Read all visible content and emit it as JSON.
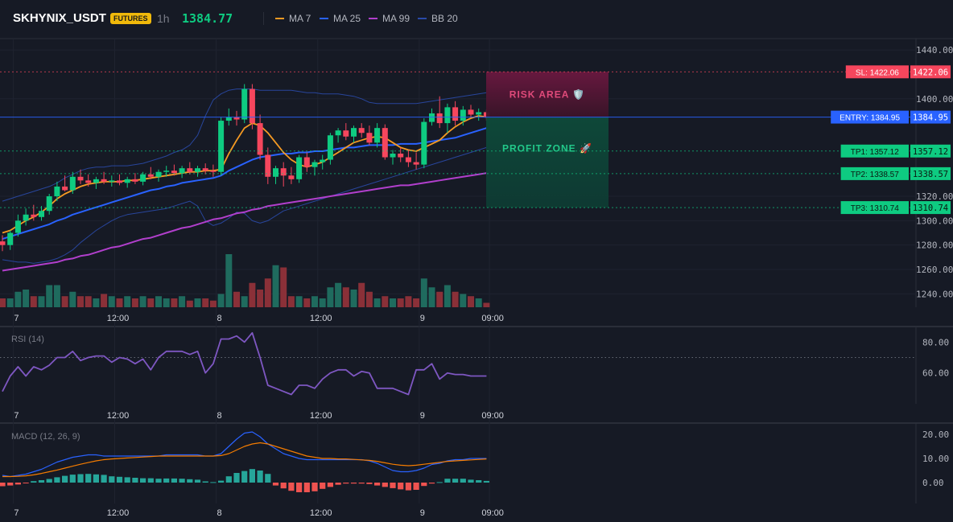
{
  "header": {
    "symbol": "SKHYNIX_USDT",
    "badge": "FUTURES",
    "timeframe": "1h",
    "last_price": "1384.77",
    "legend": [
      {
        "label": "MA 7",
        "color": "#f59a23"
      },
      {
        "label": "MA 25",
        "color": "#2962ff"
      },
      {
        "label": "MA 99",
        "color": "#b13fcc"
      },
      {
        "label": "BB 20",
        "color": "#2a4aa8"
      }
    ]
  },
  "colors": {
    "up": "#0ecb81",
    "down": "#f6465d",
    "vol_up": "#1f6b5e",
    "vol_down": "#8a3038",
    "rsi": "#7e57c2",
    "macd": "#2962ff",
    "signal": "#f57c00",
    "hist_up": "#26a69a",
    "hist_down": "#ef5350",
    "sl": "#f6465d",
    "entry": "#2962ff",
    "tp": "#0ecb81"
  },
  "chart_data": [
    {
      "type": "candlestick",
      "panel": "price",
      "y_ticks": [
        1240,
        1260,
        1280,
        1300,
        1320,
        1400,
        1440
      ],
      "ylim": [
        1229,
        1448
      ],
      "x_labels": [
        "7",
        "12:00",
        "8",
        "12:00",
        "9",
        "09:00"
      ],
      "ohlc": [
        [
          1283,
          1288,
          1275,
          1280
        ],
        [
          1280,
          1292,
          1276,
          1290
        ],
        [
          1290,
          1305,
          1287,
          1300
        ],
        [
          1300,
          1310,
          1296,
          1305
        ],
        [
          1305,
          1313,
          1300,
          1303
        ],
        [
          1303,
          1312,
          1300,
          1308
        ],
        [
          1308,
          1322,
          1305,
          1320
        ],
        [
          1320,
          1332,
          1316,
          1328
        ],
        [
          1328,
          1337,
          1324,
          1325
        ],
        [
          1325,
          1340,
          1322,
          1336
        ],
        [
          1336,
          1342,
          1330,
          1333
        ],
        [
          1333,
          1338,
          1328,
          1331
        ],
        [
          1331,
          1336,
          1326,
          1334
        ],
        [
          1334,
          1340,
          1330,
          1332
        ],
        [
          1332,
          1337,
          1328,
          1333
        ],
        [
          1333,
          1338,
          1329,
          1331
        ],
        [
          1331,
          1336,
          1327,
          1334
        ],
        [
          1334,
          1339,
          1330,
          1332
        ],
        [
          1332,
          1340,
          1329,
          1338
        ],
        [
          1338,
          1344,
          1334,
          1336
        ],
        [
          1336,
          1342,
          1332,
          1340
        ],
        [
          1340,
          1345,
          1336,
          1341
        ],
        [
          1341,
          1346,
          1337,
          1339
        ],
        [
          1339,
          1345,
          1335,
          1343
        ],
        [
          1343,
          1348,
          1338,
          1340
        ],
        [
          1340,
          1345,
          1336,
          1343
        ],
        [
          1343,
          1347,
          1338,
          1341
        ],
        [
          1341,
          1346,
          1336,
          1340
        ],
        [
          1340,
          1385,
          1337,
          1382
        ],
        [
          1382,
          1392,
          1378,
          1385
        ],
        [
          1385,
          1390,
          1378,
          1383
        ],
        [
          1383,
          1412,
          1380,
          1408
        ],
        [
          1408,
          1412,
          1375,
          1380
        ],
        [
          1380,
          1387,
          1350,
          1354
        ],
        [
          1354,
          1360,
          1330,
          1336
        ],
        [
          1336,
          1345,
          1330,
          1343
        ],
        [
          1343,
          1348,
          1328,
          1337
        ],
        [
          1337,
          1344,
          1330,
          1334
        ],
        [
          1334,
          1354,
          1331,
          1352
        ],
        [
          1352,
          1356,
          1340,
          1344
        ],
        [
          1344,
          1350,
          1337,
          1348
        ],
        [
          1348,
          1354,
          1342,
          1350
        ],
        [
          1350,
          1372,
          1346,
          1370
        ],
        [
          1370,
          1376,
          1364,
          1374
        ],
        [
          1374,
          1380,
          1366,
          1369
        ],
        [
          1369,
          1378,
          1364,
          1376
        ],
        [
          1376,
          1380,
          1368,
          1372
        ],
        [
          1372,
          1378,
          1362,
          1364
        ],
        [
          1364,
          1380,
          1360,
          1376
        ],
        [
          1376,
          1379,
          1350,
          1352
        ],
        [
          1352,
          1358,
          1346,
          1355
        ],
        [
          1355,
          1360,
          1348,
          1352
        ],
        [
          1352,
          1358,
          1344,
          1348
        ],
        [
          1348,
          1356,
          1342,
          1346
        ],
        [
          1346,
          1384,
          1343,
          1381
        ],
        [
          1381,
          1392,
          1378,
          1388
        ],
        [
          1388,
          1402,
          1376,
          1380
        ],
        [
          1380,
          1396,
          1372,
          1393
        ],
        [
          1393,
          1398,
          1378,
          1382
        ],
        [
          1382,
          1394,
          1378,
          1391
        ],
        [
          1391,
          1395,
          1385,
          1387
        ],
        [
          1387,
          1392,
          1382,
          1389
        ],
        [
          1389,
          1391,
          1382,
          1385
        ]
      ],
      "volume": [
        8,
        8,
        14,
        16,
        10,
        10,
        20,
        20,
        10,
        14,
        10,
        10,
        8,
        12,
        10,
        8,
        10,
        8,
        10,
        8,
        10,
        8,
        8,
        10,
        6,
        8,
        8,
        6,
        12,
        48,
        14,
        10,
        22,
        16,
        26,
        38,
        36,
        10,
        10,
        8,
        10,
        8,
        18,
        22,
        18,
        16,
        22,
        14,
        8,
        10,
        8,
        8,
        10,
        8,
        26,
        18,
        14,
        20,
        14,
        12,
        10,
        8,
        4
      ],
      "ma7": [
        1290,
        1292,
        1296,
        1300,
        1303,
        1307,
        1312,
        1318,
        1322,
        1325,
        1328,
        1330,
        1331,
        1332,
        1332,
        1332,
        1333,
        1333,
        1334,
        1335,
        1336,
        1337,
        1338,
        1339,
        1340,
        1340,
        1341,
        1341,
        1342,
        1355,
        1366,
        1376,
        1380,
        1378,
        1372,
        1364,
        1356,
        1350,
        1346,
        1344,
        1346,
        1348,
        1352,
        1356,
        1360,
        1364,
        1366,
        1368,
        1369,
        1368,
        1364,
        1360,
        1358,
        1357,
        1360,
        1363,
        1366,
        1372,
        1377,
        1381,
        1384,
        1386,
        1385
      ],
      "ma25": [
        1285,
        1287,
        1289,
        1291,
        1293,
        1295,
        1297,
        1300,
        1302,
        1305,
        1307,
        1309,
        1311,
        1313,
        1315,
        1317,
        1319,
        1321,
        1323,
        1325,
        1326,
        1328,
        1329,
        1331,
        1332,
        1333,
        1334,
        1335,
        1337,
        1341,
        1344,
        1347,
        1350,
        1352,
        1353,
        1354,
        1355,
        1355,
        1356,
        1356,
        1357,
        1357,
        1358,
        1359,
        1360,
        1360,
        1361,
        1362,
        1362,
        1362,
        1362,
        1363,
        1363,
        1363,
        1364,
        1365,
        1366,
        1367,
        1368,
        1370,
        1372,
        1374,
        1376
      ],
      "ma99": [
        1259,
        1260,
        1261,
        1262,
        1263,
        1264,
        1265,
        1266,
        1268,
        1269,
        1271,
        1272,
        1274,
        1276,
        1278,
        1279,
        1281,
        1283,
        1285,
        1286,
        1288,
        1290,
        1292,
        1294,
        1295,
        1297,
        1299,
        1301,
        1302,
        1304,
        1306,
        1307,
        1309,
        1310,
        1312,
        1313,
        1314,
        1315,
        1316,
        1317,
        1318,
        1319,
        1320,
        1321,
        1322,
        1323,
        1324,
        1325,
        1326,
        1327,
        1328,
        1329,
        1329,
        1330,
        1331,
        1332,
        1333,
        1334,
        1335,
        1336,
        1337,
        1338,
        1339
      ],
      "bb_upper": [
        1316,
        1318,
        1320,
        1322,
        1324,
        1326,
        1328,
        1331,
        1335,
        1338,
        1341,
        1343,
        1344,
        1344,
        1345,
        1345,
        1345,
        1346,
        1347,
        1349,
        1351,
        1353,
        1356,
        1358,
        1362,
        1370,
        1386,
        1399,
        1404,
        1407,
        1408,
        1408,
        1408,
        1407,
        1407,
        1407,
        1407,
        1407,
        1406,
        1405,
        1405,
        1404,
        1404,
        1404,
        1403,
        1402,
        1400,
        1397,
        1396,
        1396,
        1396,
        1396,
        1396,
        1396,
        1397,
        1398,
        1399,
        1400,
        1401,
        1402,
        1403,
        1404,
        1405
      ],
      "bb_lower": [
        1268,
        1267,
        1266,
        1266,
        1265,
        1266,
        1267,
        1269,
        1272,
        1276,
        1282,
        1287,
        1292,
        1296,
        1300,
        1303,
        1305,
        1306,
        1307,
        1308,
        1309,
        1310,
        1312,
        1314,
        1316,
        1312,
        1300,
        1296,
        1298,
        1302,
        1307,
        1306,
        1300,
        1298,
        1300,
        1304,
        1308,
        1310,
        1312,
        1314,
        1316,
        1318,
        1320,
        1322,
        1324,
        1326,
        1328,
        1330,
        1332,
        1334,
        1336,
        1338,
        1340,
        1342,
        1344,
        1346,
        1348,
        1350,
        1352,
        1354,
        1356,
        1358,
        1360
      ]
    },
    {
      "type": "line",
      "panel": "rsi",
      "title": "RSI (14)",
      "y_ticks": [
        60,
        80
      ],
      "ylim": [
        40,
        88
      ],
      "values": [
        48,
        58,
        64,
        58,
        64,
        62,
        65,
        70,
        70,
        74,
        68,
        70,
        71,
        71,
        67,
        70,
        69,
        66,
        69,
        62,
        70,
        74,
        74,
        74,
        72,
        74,
        60,
        66,
        82,
        82,
        84,
        80,
        86,
        70,
        52,
        50,
        48,
        46,
        52,
        52,
        50,
        56,
        60,
        62,
        62,
        58,
        61,
        60,
        50,
        50,
        50,
        48,
        46,
        62,
        62,
        66,
        56,
        60,
        59,
        59,
        58,
        58,
        58
      ],
      "overbought": 70
    },
    {
      "type": "line",
      "panel": "macd",
      "title": "MACD (12, 26, 9)",
      "y_ticks": [
        0,
        10,
        20
      ],
      "ylim": [
        -8,
        24
      ],
      "macd": [
        3,
        2.5,
        3,
        3.5,
        4.5,
        5.5,
        7,
        8.5,
        9.5,
        10.5,
        11,
        11.5,
        11.5,
        11,
        11,
        11,
        11,
        11,
        11,
        11,
        11,
        11.5,
        11.5,
        11.5,
        11.5,
        11.5,
        11,
        11,
        12,
        15,
        18,
        20.5,
        21,
        19,
        16,
        14,
        12,
        11,
        10,
        9.5,
        9.5,
        9.5,
        9.5,
        9.5,
        9.5,
        9.5,
        9.5,
        9,
        8,
        6.5,
        5,
        4.5,
        4.5,
        5,
        6,
        7.5,
        8,
        9,
        9.5,
        9.5,
        10,
        10,
        10
      ],
      "signal": [
        2.5,
        2.5,
        2.6,
        2.8,
        3.2,
        3.8,
        4.5,
        5.2,
        6,
        6.8,
        7.6,
        8.3,
        9,
        9.5,
        9.8,
        10,
        10.2,
        10.4,
        10.6,
        10.8,
        11,
        11,
        11,
        11,
        11,
        11,
        11,
        11,
        11.2,
        12,
        13.5,
        15,
        16,
        16.5,
        16,
        15,
        14,
        13,
        12,
        11,
        10.5,
        10,
        10,
        9.8,
        9.8,
        9.6,
        9.4,
        9.2,
        8.8,
        8.2,
        7.6,
        7.2,
        7,
        7.2,
        7.6,
        8,
        8.4,
        8.8,
        9,
        9.2,
        9.4,
        9.6,
        9.8
      ],
      "hist": [
        -1.5,
        -1.2,
        -0.8,
        -0.3,
        0.6,
        1,
        1.5,
        2.2,
        2.8,
        3.3,
        3.5,
        3.6,
        3.4,
        3.2,
        2.6,
        2.4,
        2.2,
        2,
        1.8,
        1.8,
        1.6,
        1.7,
        1.7,
        1.6,
        1.4,
        1.2,
        0.5,
        0.2,
        0.8,
        2.6,
        4,
        4.8,
        5.6,
        5,
        3.6,
        -1.2,
        -2.4,
        -3.4,
        -4,
        -4,
        -3.6,
        -2.6,
        -1.8,
        -0.9,
        -0.4,
        -0.4,
        -0.4,
        -0.6,
        -1.2,
        -1.8,
        -2.3,
        -2.8,
        -3.2,
        -3,
        -1.4,
        -0.4,
        0.2,
        1.6,
        1.6,
        1.6,
        1.2,
        1,
        0.7
      ]
    }
  ],
  "trade": {
    "sl_label": "SL: 1422.06",
    "sl_value": 1422.06,
    "sl_tag": "1422.06",
    "entry_label": "ENTRY: 1384.95",
    "entry_value": 1384.95,
    "entry_tag": "1384.95",
    "tp1_label": "TP1: 1357.12",
    "tp1_value": 1357.12,
    "tp1_tag": "1357.12",
    "tp2_label": "TP2: 1338.57",
    "tp2_value": 1338.57,
    "tp2_tag": "1338.57",
    "tp3_label": "TP3: 1310.74",
    "tp3_value": 1310.74,
    "tp3_tag": "1310.74",
    "risk_label": "RISK AREA 🛡️",
    "profit_label": "PROFIT ZONE 🚀"
  }
}
